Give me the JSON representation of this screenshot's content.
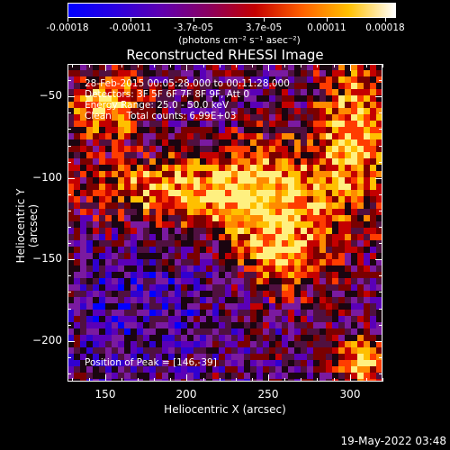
{
  "colorbar": {
    "ticks": [
      "-0.00018",
      "-0.00011",
      "-3.7e-05",
      "3.7e-05",
      "0.00011",
      "0.00018"
    ],
    "unit": "(photons cm⁻² s⁻¹ asec⁻²)",
    "stops": [
      "#0000ff",
      "#2a00e0",
      "#6000b0",
      "#8a0060",
      "#c40000",
      "#ff6000",
      "#ffc000",
      "#ffffff"
    ]
  },
  "annotations": {
    "line1": "28-Feb-2015 00:05:28.000 to 00:11:28.000",
    "line2": "Detectors: 3F 5F 6F 7F 8F 9F, Att 0",
    "line3": "Energy Range: 25.0 - 50.0 keV",
    "line4": "Clean     Total counts: 6.99E+03",
    "peak": "Position of Peak = [146,-39]"
  },
  "timestamp": "19-May-2022 03:48",
  "chart_data": {
    "type": "heatmap",
    "title": "Reconstructed RHESSI Image",
    "xlabel": "Heliocentric X (arcsec)",
    "ylabel": "Heliocentric Y (arcsec)",
    "xlim": [
      127,
      320
    ],
    "ylim": [
      -225,
      -30
    ],
    "xticks": [
      150,
      200,
      250,
      300
    ],
    "yticks": [
      -50,
      -100,
      -150,
      -200
    ],
    "xtick_labels": [
      "150",
      "200",
      "250",
      "300"
    ],
    "ytick_labels": [
      "−50",
      "−100",
      "−150",
      "−200"
    ],
    "colorbar_range": [
      -0.00018,
      0.00018
    ],
    "peak": [
      146,
      -39
    ]
  }
}
